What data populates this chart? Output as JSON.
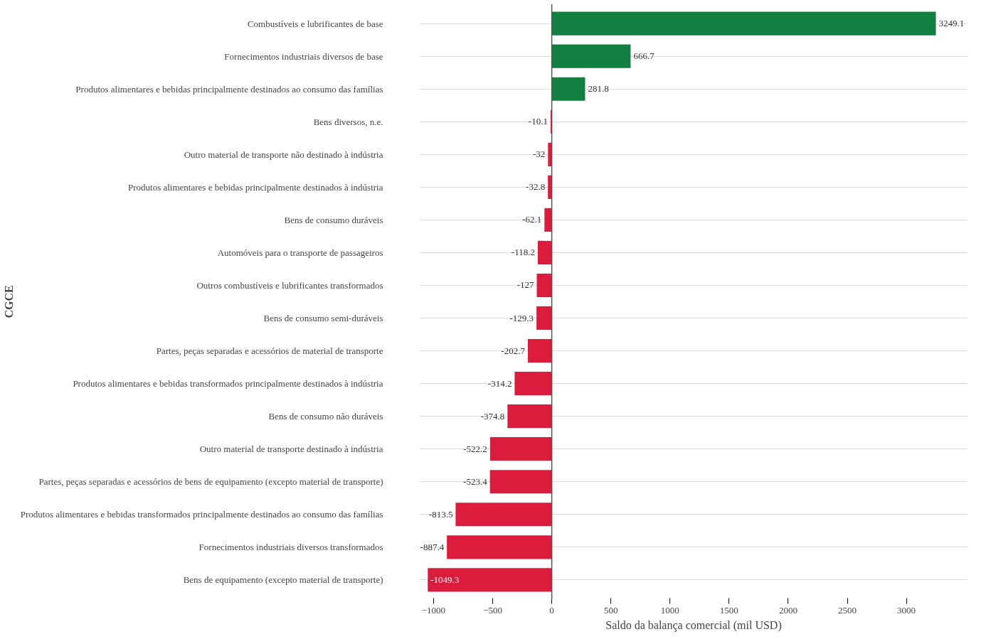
{
  "chart_data": {
    "type": "bar",
    "orientation": "horizontal",
    "xlabel": "Saldo da balança comercial (mil USD)",
    "ylabel": "CGCE",
    "categories": [
      "Combustíveis e lubrificantes de base",
      "Fornecimentos industriais diversos de base",
      "Produtos alimentares e bebidas principalmente destinados ao consumo das famílias",
      "Bens diversos, n.e.",
      "Outro material de transporte não destinado à indústria",
      "Produtos alimentares e bebidas principalmente destinados à indústria",
      "Bens de consumo duráveis",
      "Automóveis para o transporte de passageiros",
      "Outros combustíveis e lubrificantes transformados",
      "Bens de consumo semi-duráveis",
      "Partes, peças separadas e acessórios de material de transporte",
      "Produtos alimentares e bebidas transformados principalmente destinados à indústria",
      "Bens de consumo não duráveis",
      "Outro material de transporte destinado à indústria",
      "Partes, peças separadas e acessórios de bens de equipamento (excepto material de transporte)",
      "Produtos alimentares e bebidas transformados principalmente destinados ao consumo das famílias",
      "Fornecimentos industriais diversos transformados",
      "Bens de equipamento (excepto material de transporte)"
    ],
    "values": [
      3249.1,
      666.7,
      281.8,
      -10.1,
      -32,
      -32.8,
      -62.1,
      -118.2,
      -127,
      -129.3,
      -202.7,
      -314.2,
      -374.8,
      -522.2,
      -523.4,
      -813.5,
      -887.4,
      -1049.3
    ],
    "colors": [
      "#128040",
      "#128040",
      "#128040",
      "#dc1c3c",
      "#dc1c3c",
      "#dc1c3c",
      "#dc1c3c",
      "#dc1c3c",
      "#dc1c3c",
      "#dc1c3c",
      "#dc1c3c",
      "#dc1c3c",
      "#dc1c3c",
      "#dc1c3c",
      "#dc1c3c",
      "#dc1c3c",
      "#dc1c3c",
      "#dc1c3c"
    ],
    "xlim": [
      -1120,
      3520
    ],
    "xticks": [
      {
        "value": -1000,
        "label": "−1000"
      },
      {
        "value": -500,
        "label": "−500"
      },
      0,
      500,
      1000,
      1500,
      2000,
      2500,
      3000
    ],
    "grid": "y",
    "data_labels": true
  }
}
